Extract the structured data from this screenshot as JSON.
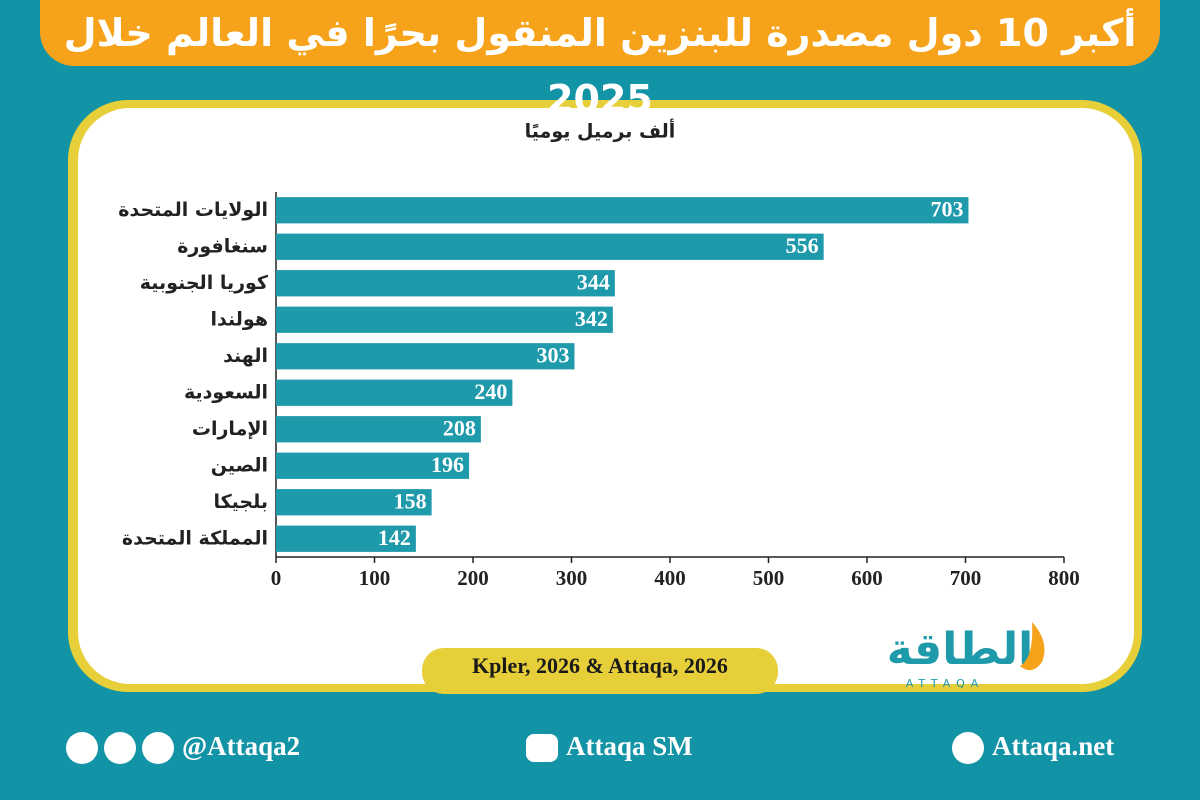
{
  "chart_data": {
    "type": "bar",
    "orientation": "horizontal",
    "title": "أكبر 10 دول مصدرة للبنزين المنقول بحرًا في العالم خلال 2025",
    "subtitle": "ألف برميل يوميًا",
    "categories": [
      "الولايات المتحدة",
      "سنغافورة",
      "كوريا الجنوبية",
      "هولندا",
      "الهند",
      "السعودية",
      "الإمارات",
      "الصين",
      "بلجيكا",
      "المملكة المتحدة"
    ],
    "values": [
      703,
      556,
      344,
      342,
      303,
      240,
      208,
      196,
      158,
      142
    ],
    "color": "#1f9aab",
    "xlim": [
      0,
      800
    ],
    "xticks": [
      0,
      100,
      200,
      300,
      400,
      500,
      600,
      700,
      800
    ],
    "source": "Kpler, 2026 & Attaqa, 2026"
  },
  "logo": {
    "name": "الطاقة",
    "latin": "ATTAQA"
  },
  "footer": {
    "social": "@Attaqa2",
    "youtube": "Attaqa SM",
    "website": "Attaqa.net"
  }
}
